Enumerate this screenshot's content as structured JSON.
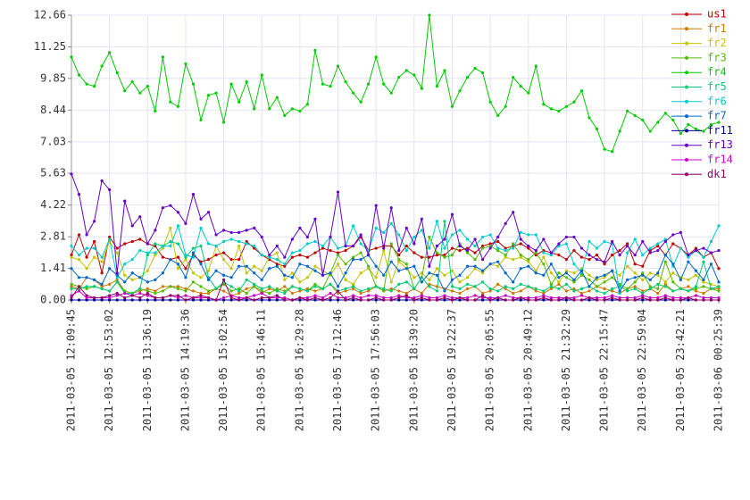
{
  "chart_data": {
    "type": "line",
    "categories": [
      "2011-03-05 12:09:45",
      null,
      null,
      null,
      null,
      "2011-03-05 12:53:02",
      null,
      null,
      null,
      null,
      "2011-03-05 13:36:19",
      null,
      null,
      null,
      null,
      "2011-03-05 14:19:36",
      null,
      null,
      null,
      null,
      "2011-03-05 15:02:54",
      null,
      null,
      null,
      null,
      "2011-03-05 15:46:11",
      null,
      null,
      null,
      null,
      "2011-03-05 16:29:28",
      null,
      null,
      null,
      null,
      "2011-03-05 17:12:46",
      null,
      null,
      null,
      null,
      "2011-03-05 17:56:03",
      null,
      null,
      null,
      null,
      "2011-03-05 18:39:20",
      null,
      null,
      null,
      null,
      "2011-03-05 19:22:37",
      null,
      null,
      null,
      null,
      "2011-03-05 20:05:55",
      null,
      null,
      null,
      null,
      "2011-03-05 20:49:12",
      null,
      null,
      null,
      null,
      "2011-03-05 21:32:29",
      null,
      null,
      null,
      null,
      "2011-03-05 22:15:47",
      null,
      null,
      null,
      null,
      "2011-03-05 22:59:04",
      null,
      null,
      null,
      null,
      "2011-03-05 23:42:21",
      null,
      null,
      null,
      null,
      "2011-03-06 00:25:39"
    ],
    "ylim": [
      0,
      12.66
    ],
    "yticks": [
      {
        "value": 0,
        "label": "0.00"
      },
      1.41,
      2.81,
      4.22,
      5.63,
      7.03,
      8.44,
      9.85,
      11.25,
      12.66
    ],
    "grid": true,
    "legend": "right",
    "series": [
      {
        "name": "us1",
        "color": "#c00000",
        "values": [
          2.0,
          2.9,
          1.9,
          2.6,
          1.2,
          2.8,
          2.3,
          2.5,
          2.6,
          2.7,
          2.5,
          2.4,
          1.9,
          1.8,
          1.9,
          1.4,
          2.0,
          1.7,
          1.8,
          2.0,
          2.1,
          1.8,
          1.8,
          2.6,
          2.3,
          2.0,
          1.8,
          1.6,
          1.5,
          1.9,
          2.0,
          1.9,
          2.1,
          2.3,
          2.2,
          2.1,
          2.2,
          2.4,
          2.8,
          2.2,
          2.3,
          2.4,
          2.4,
          2.0,
          2.4,
          2.1,
          1.9,
          1.9,
          2.0,
          2.0,
          2.3,
          2.2,
          2.3,
          2.1,
          2.4,
          2.5,
          2.6,
          2.3,
          2.4,
          2.5,
          2.3,
          2.0,
          2.2,
          2.1,
          2.0,
          1.8,
          2.2,
          1.9,
          1.8,
          2.0,
          1.6,
          2.0,
          2.2,
          2.5,
          1.6,
          1.5,
          2.2,
          2.4,
          2.0,
          2.5,
          2.3,
          2.0,
          2.3,
          1.9,
          2.1,
          1.4
        ]
      },
      {
        "name": "fr1",
        "color": "#cc7a00",
        "values": [
          0.6,
          0.5,
          1.0,
          0.9,
          0.6,
          0.7,
          0.9,
          0.4,
          0.3,
          0.4,
          0.5,
          0.4,
          0.6,
          0.6,
          0.6,
          0.5,
          0.4,
          0.3,
          0.3,
          0.5,
          0.4,
          0.2,
          0.3,
          0.5,
          0.6,
          0.3,
          0.5,
          0.4,
          0.6,
          0.3,
          0.4,
          0.5,
          0.4,
          0.5,
          0.7,
          0.3,
          0.4,
          0.5,
          0.3,
          0.4,
          0.6,
          0.4,
          0.5,
          0.4,
          0.3,
          0.5,
          0.3,
          0.7,
          0.6,
          0.5,
          0.4,
          0.3,
          0.5,
          0.6,
          0.3,
          0.4,
          0.7,
          0.5,
          0.3,
          0.4,
          0.6,
          0.4,
          0.3,
          0.5,
          0.7,
          0.4,
          0.5,
          0.3,
          0.4,
          0.6,
          0.5,
          0.4,
          0.3,
          0.5,
          0.6,
          0.4,
          0.5,
          0.3,
          0.7,
          0.4,
          0.5,
          0.6,
          0.4,
          0.3,
          0.5,
          0.5
        ]
      },
      {
        "name": "fr2",
        "color": "#c4c400",
        "values": [
          1.9,
          1.8,
          1.4,
          1.9,
          1.7,
          2.6,
          2.1,
          1.1,
          0.9,
          1.0,
          1.3,
          2.0,
          2.3,
          3.2,
          1.4,
          1.8,
          1.2,
          1.0,
          1.3,
          2.4,
          1.8,
          1.4,
          2.4,
          1.2,
          1.5,
          1.3,
          1.9,
          2.1,
          0.9,
          1.2,
          0.8,
          1.0,
          1.5,
          1.3,
          1.1,
          1.6,
          0.9,
          0.7,
          1.2,
          1.4,
          1.0,
          2.2,
          0.8,
          1.7,
          1.4,
          1.0,
          1.2,
          0.9,
          1.4,
          1.1,
          1.3,
          0.8,
          1.0,
          1.4,
          1.2,
          1.6,
          1.5,
          1.9,
          1.8,
          1.9,
          1.7,
          1.3,
          1.9,
          1.2,
          0.8,
          1.3,
          1.2,
          1.4,
          1.1,
          0.9,
          1.0,
          1.3,
          1.1,
          1.5,
          1.2,
          0.9,
          1.2,
          1.1,
          0.8,
          1.2,
          1.0,
          0.9,
          1.1,
          0.8,
          0.7,
          0.6
        ]
      },
      {
        "name": "fr3",
        "color": "#55bb00",
        "values": [
          0.7,
          0.6,
          0.5,
          0.6,
          0.5,
          0.4,
          0.8,
          0.4,
          0.3,
          0.5,
          0.4,
          0.3,
          0.4,
          0.6,
          0.5,
          0.4,
          0.8,
          0.6,
          0.4,
          0.5,
          0.7,
          0.4,
          0.5,
          0.3,
          0.6,
          0.4,
          0.3,
          0.5,
          0.4,
          0.6,
          0.5,
          0.4,
          0.7,
          0.5,
          1.2,
          2.0,
          1.6,
          1.9,
          2.1,
          1.5,
          0.6,
          0.4,
          2.5,
          1.8,
          1.6,
          0.5,
          1.0,
          2.8,
          2.1,
          1.9,
          2.0,
          2.5,
          2.1,
          1.8,
          2.3,
          2.4,
          2.2,
          2.0,
          2.5,
          2.0,
          1.8,
          2.1,
          1.6,
          0.7,
          1.2,
          1.0,
          0.8,
          1.1,
          0.9,
          0.6,
          0.8,
          1.0,
          0.7,
          0.5,
          0.8,
          1.2,
          0.6,
          0.5,
          1.7,
          0.8,
          0.5,
          0.4,
          0.5,
          0.6,
          0.5,
          0.4
        ]
      },
      {
        "name": "fr4",
        "color": "#00cc00",
        "values": [
          10.8,
          10.0,
          9.6,
          9.5,
          10.4,
          11.0,
          10.1,
          9.3,
          9.7,
          9.2,
          9.5,
          8.4,
          10.8,
          8.8,
          8.6,
          10.5,
          9.6,
          8.0,
          9.1,
          9.2,
          7.9,
          9.6,
          8.8,
          9.7,
          8.5,
          10.0,
          8.5,
          9.0,
          8.2,
          8.5,
          8.4,
          8.7,
          11.1,
          9.6,
          9.5,
          10.4,
          9.7,
          9.2,
          8.8,
          9.6,
          10.8,
          9.6,
          9.2,
          9.9,
          10.2,
          10.0,
          9.4,
          12.66,
          9.5,
          10.2,
          8.6,
          9.3,
          9.9,
          10.3,
          10.1,
          8.8,
          8.2,
          8.6,
          9.9,
          9.5,
          9.2,
          10.4,
          8.7,
          8.5,
          8.4,
          8.6,
          8.8,
          9.3,
          8.1,
          7.6,
          6.7,
          6.6,
          7.5,
          8.4,
          8.2,
          8.0,
          7.5,
          7.9,
          8.3,
          8.0,
          7.4,
          7.8,
          7.6,
          7.5,
          7.8,
          7.9
        ]
      },
      {
        "name": "fr5",
        "color": "#00cc77",
        "values": [
          0.5,
          0.5,
          0.6,
          0.6,
          0.5,
          0.4,
          0.8,
          0.3,
          0.3,
          0.5,
          2.0,
          2.5,
          2.4,
          2.6,
          2.5,
          1.9,
          2.3,
          2.4,
          1.0,
          0.5,
          0.8,
          0.6,
          0.4,
          0.9,
          0.7,
          0.5,
          0.6,
          0.4,
          0.3,
          0.6,
          0.5,
          0.4,
          0.6,
          0.5,
          0.7,
          0.4,
          0.5,
          0.6,
          0.4,
          0.5,
          0.6,
          0.5,
          0.4,
          0.7,
          0.8,
          0.5,
          1.0,
          0.6,
          0.4,
          3.5,
          0.6,
          0.5,
          0.7,
          0.6,
          0.8,
          0.5,
          0.4,
          0.6,
          0.5,
          0.7,
          0.6,
          0.5,
          0.4,
          0.6,
          0.5,
          0.7,
          0.4,
          0.5,
          0.6,
          0.4,
          0.3,
          0.5,
          0.6,
          0.4,
          0.5,
          0.3,
          0.5,
          0.7,
          0.6,
          0.4,
          0.5,
          0.4,
          0.6,
          1.7,
          0.5,
          0.6
        ]
      },
      {
        "name": "fr6",
        "color": "#00cccc",
        "values": [
          2.4,
          2.0,
          2.3,
          2.3,
          1.9,
          2.7,
          1.0,
          1.6,
          1.8,
          2.2,
          2.1,
          2.1,
          2.4,
          2.4,
          3.3,
          2.0,
          1.9,
          3.2,
          2.5,
          2.4,
          2.6,
          2.7,
          2.6,
          2.5,
          2.4,
          2.0,
          1.9,
          1.8,
          1.6,
          2.1,
          2.2,
          2.5,
          2.6,
          2.4,
          2.8,
          2.3,
          2.4,
          3.3,
          2.5,
          2.2,
          3.2,
          3.0,
          3.4,
          2.9,
          2.2,
          2.8,
          3.1,
          2.3,
          3.5,
          2.3,
          2.9,
          3.1,
          2.7,
          2.4,
          2.8,
          2.9,
          2.3,
          2.2,
          2.3,
          3.0,
          2.9,
          2.9,
          2.1,
          2.0,
          2.4,
          2.5,
          1.6,
          1.2,
          2.6,
          2.3,
          2.6,
          2.5,
          0.3,
          2.1,
          2.7,
          2.0,
          2.3,
          2.5,
          2.7,
          1.5,
          2.3,
          1.9,
          2.2,
          1.9,
          2.6,
          3.3
        ]
      },
      {
        "name": "fr7",
        "color": "#0066cc",
        "values": [
          1.4,
          1.0,
          1.0,
          0.9,
          0.7,
          1.4,
          1.1,
          0.8,
          1.2,
          1.0,
          0.8,
          0.9,
          1.2,
          1.8,
          1.6,
          1.0,
          2.1,
          1.6,
          0.9,
          1.3,
          1.1,
          1.0,
          1.5,
          1.5,
          1.2,
          0.9,
          1.4,
          1.5,
          1.1,
          1.0,
          1.6,
          1.5,
          1.3,
          1.1,
          1.2,
          0.6,
          1.2,
          1.8,
          1.8,
          2.0,
          1.5,
          1.1,
          1.7,
          1.3,
          1.4,
          1.5,
          0.8,
          1.2,
          1.1,
          0.4,
          0.9,
          1.1,
          1.5,
          1.5,
          1.3,
          1.6,
          1.7,
          1.2,
          0.8,
          1.4,
          1.5,
          1.2,
          1.1,
          1.6,
          1.0,
          1.2,
          0.9,
          1.3,
          0.6,
          1.0,
          1.1,
          1.3,
          0.4,
          0.9,
          1.0,
          1.1,
          0.9,
          1.2,
          2.0,
          1.6,
          0.9,
          1.7,
          1.3,
          0.9,
          1.6,
          0.8
        ]
      },
      {
        "name": "fr11",
        "color": "#000099",
        "values": [
          0,
          0,
          0,
          0,
          0,
          0,
          0,
          0,
          0,
          0,
          0,
          0,
          0,
          0,
          0,
          0,
          0,
          0,
          0,
          0,
          0,
          0,
          0,
          0,
          0,
          0,
          0,
          0,
          0,
          0,
          0,
          0,
          0,
          0,
          0,
          0,
          0,
          0,
          0,
          0,
          0,
          0,
          0,
          0,
          0,
          0,
          0,
          0,
          0,
          0,
          0,
          0,
          0,
          0,
          0,
          0,
          0,
          0,
          0,
          0,
          0,
          0,
          0,
          0,
          0,
          0,
          0,
          0,
          0,
          0,
          0,
          0,
          0,
          0,
          0,
          0,
          0,
          0,
          0,
          0,
          0,
          0,
          0,
          0,
          0,
          0
        ]
      },
      {
        "name": "fr13",
        "color": "#6600cc",
        "values": [
          5.6,
          4.7,
          2.9,
          3.5,
          5.3,
          4.9,
          1.2,
          4.4,
          3.3,
          3.7,
          2.5,
          3.1,
          4.1,
          4.2,
          3.9,
          3.4,
          4.7,
          3.6,
          3.9,
          2.9,
          3.1,
          3.0,
          3.0,
          3.1,
          3.2,
          2.8,
          2.0,
          2.4,
          1.9,
          2.7,
          3.2,
          2.8,
          3.6,
          1.1,
          2.8,
          4.8,
          2.4,
          2.4,
          2.9,
          2.0,
          4.2,
          2.3,
          4.1,
          2.2,
          3.2,
          2.5,
          3.6,
          1.5,
          2.4,
          2.7,
          3.8,
          2.4,
          2.2,
          2.7,
          1.8,
          2.3,
          2.8,
          3.4,
          3.9,
          2.7,
          2.4,
          2.2,
          2.7,
          2.1,
          2.5,
          2.8,
          2.8,
          2.3,
          2.0,
          1.8,
          1.7,
          2.6,
          2.0,
          2.4,
          2.0,
          2.6,
          2.1,
          2.2,
          2.6,
          2.9,
          3.0,
          2.0,
          2.2,
          2.3,
          2.1,
          2.2
        ]
      },
      {
        "name": "fr14",
        "color": "#cc00cc",
        "values": [
          0.2,
          0.4,
          0.1,
          0.1,
          0.1,
          0.1,
          0.2,
          0.3,
          0.2,
          0.3,
          0.2,
          0.1,
          0.1,
          0.2,
          0.1,
          0.2,
          0.1,
          0.1,
          0.1,
          0.0,
          0.1,
          0.2,
          0.1,
          0.1,
          0.2,
          0.3,
          0.1,
          0.1,
          0.1,
          0.0,
          0.1,
          0.1,
          0.2,
          0.1,
          0.3,
          0.1,
          0.1,
          0.2,
          0.1,
          0.2,
          0.2,
          0.1,
          0.1,
          0.2,
          0.1,
          0.1,
          0.2,
          0.1,
          0.1,
          0.2,
          0.1,
          0.1,
          0.1,
          0.2,
          0.1,
          0.1,
          0.1,
          0.2,
          0.1,
          0.1,
          0.1,
          0.1,
          0.2,
          0.1,
          0.1,
          0.1,
          0.1,
          0.2,
          0.1,
          0.1,
          0.1,
          0.2,
          0.1,
          0.1,
          0.1,
          0.2,
          0.1,
          0.1,
          0.2,
          0.1,
          0.1,
          0.1,
          0.2,
          0.1,
          0.1,
          0.1
        ]
      },
      {
        "name": "dk1",
        "color": "#990066",
        "values": [
          0.1,
          0.6,
          0.2,
          0.1,
          0.1,
          0.2,
          0.3,
          0.1,
          0.2,
          0.1,
          0.3,
          0.1,
          0.1,
          0.2,
          0.2,
          0.0,
          0.1,
          0.2,
          0.1,
          0.0,
          0.9,
          0.1,
          0.0,
          0.1,
          0.0,
          0.1,
          0.1,
          0.2,
          0.0,
          0.0,
          0.1,
          0.0,
          0.1,
          0.0,
          0.1,
          0.4,
          0.0,
          0.1,
          0.0,
          0.0,
          0.1,
          0.0,
          0.0,
          0.1,
          0.2,
          0.0,
          0.1,
          0.0,
          0.0,
          0.1,
          0.0,
          0.1,
          0.0,
          0.0,
          0.2,
          0.0,
          0.1,
          0.0,
          0.0,
          0.1,
          0.0,
          0.0,
          0.1,
          0.0,
          0.0,
          0.1,
          0.0,
          0.0,
          0.1,
          0.0,
          0.0,
          0.1,
          0.0,
          0.0,
          0.0,
          0.1,
          0.0,
          0.0,
          0.1,
          0.0,
          0.0,
          0.1,
          0.0,
          0.0,
          0.0,
          0.0
        ]
      }
    ]
  }
}
